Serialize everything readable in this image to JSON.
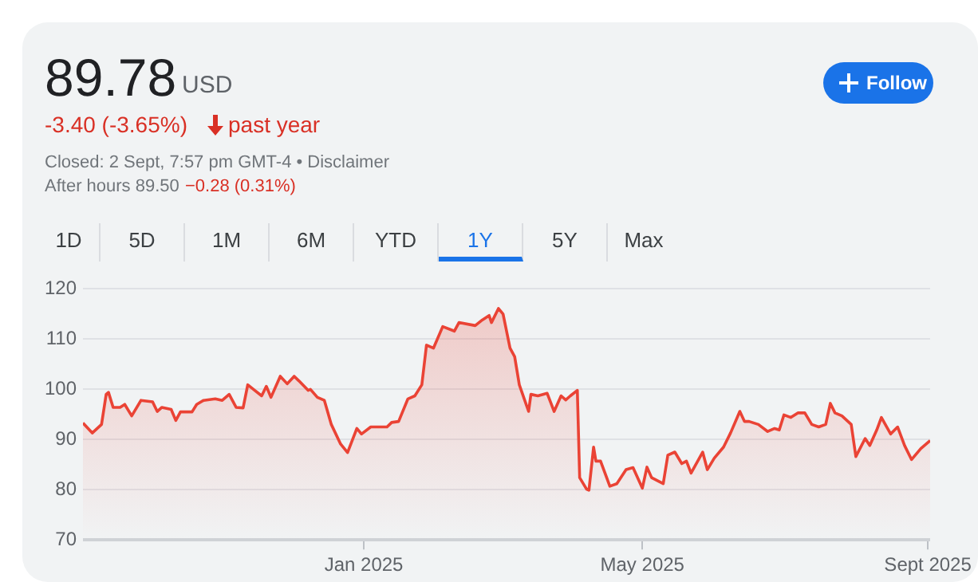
{
  "chart_data": {
    "type": "area",
    "title": "89.78",
    "subtitle": "USD",
    "annotations": [
      "-3.40 (-3.65%)",
      "past year",
      "Closed: 2 Sept, 7:57 pm GMT-4 • Disclaimer",
      "After hours 89.50",
      "−0.28 (0.31%)",
      "1D",
      "5D",
      "1M",
      "6M",
      "YTD",
      "1Y",
      "5Y",
      "Max",
      "Follow"
    ],
    "x": [
      "2024-09-02",
      "2024-09-06",
      "2024-09-10",
      "2024-09-12",
      "2024-09-13",
      "2024-09-15",
      "2024-09-18",
      "2024-09-20",
      "2024-09-23",
      "2024-09-27",
      "2024-10-02",
      "2024-10-04",
      "2024-10-06",
      "2024-10-10",
      "2024-10-12",
      "2024-10-14",
      "2024-10-19",
      "2024-10-21",
      "2024-10-24",
      "2024-10-29",
      "2024-11-01",
      "2024-11-04",
      "2024-11-07",
      "2024-11-10",
      "2024-11-12",
      "2024-11-15",
      "2024-11-18",
      "2024-11-20",
      "2024-11-22",
      "2024-11-26",
      "2024-11-29",
      "2024-12-02",
      "2024-12-04",
      "2024-12-08",
      "2024-12-09",
      "2024-12-12",
      "2024-12-15",
      "2024-12-18",
      "2024-12-22",
      "2024-12-25",
      "2024-12-29",
      "2024-12-31",
      "2025-01-04",
      "2025-01-11",
      "2025-01-13",
      "2025-01-16",
      "2025-01-20",
      "2025-01-23",
      "2025-01-26",
      "2025-01-28",
      "2025-01-31",
      "2025-02-04",
      "2025-02-09",
      "2025-02-11",
      "2025-02-18",
      "2025-02-21",
      "2025-02-24",
      "2025-02-25",
      "2025-02-28",
      "2025-03-02",
      "2025-03-05",
      "2025-03-07",
      "2025-03-09",
      "2025-03-13",
      "2025-03-14",
      "2025-03-17",
      "2025-03-21",
      "2025-03-24",
      "2025-03-27",
      "2025-03-29",
      "2025-03-31",
      "2025-04-03",
      "2025-04-04",
      "2025-04-07",
      "2025-04-08",
      "2025-04-10",
      "2025-04-11",
      "2025-04-13",
      "2025-04-17",
      "2025-04-20",
      "2025-04-24",
      "2025-04-27",
      "2025-05-01",
      "2025-05-03",
      "2025-05-05",
      "2025-05-10",
      "2025-05-12",
      "2025-05-15",
      "2025-05-18",
      "2025-05-20",
      "2025-05-22",
      "2025-05-27",
      "2025-05-29",
      "2025-06-01",
      "2025-06-05",
      "2025-06-08",
      "2025-06-12",
      "2025-06-14",
      "2025-06-16",
      "2025-06-20",
      "2025-06-24",
      "2025-06-27",
      "2025-06-29",
      "2025-07-01",
      "2025-07-04",
      "2025-07-07",
      "2025-07-10",
      "2025-07-13",
      "2025-07-16",
      "2025-07-19",
      "2025-07-21",
      "2025-07-23",
      "2025-07-26",
      "2025-07-30",
      "2025-08-01",
      "2025-08-05",
      "2025-08-07",
      "2025-08-10",
      "2025-08-12",
      "2025-08-16",
      "2025-08-19",
      "2025-08-22",
      "2025-08-25",
      "2025-08-29",
      "2025-09-02"
    ],
    "values": [
      93.3,
      91.3,
      93,
      99,
      99.4,
      96.4,
      96.4,
      97,
      94.7,
      97.8,
      97.5,
      95.6,
      96.4,
      96,
      93.8,
      95.5,
      95.5,
      97,
      97.8,
      98.1,
      97.8,
      99,
      96.4,
      96.3,
      100.9,
      99.8,
      98.7,
      100.6,
      98.4,
      102.6,
      101.1,
      102.6,
      101.7,
      99.8,
      100,
      98.4,
      97.8,
      93,
      89.1,
      87.4,
      92.2,
      91.1,
      92.5,
      92.5,
      93.4,
      93.6,
      98.1,
      98.7,
      100.9,
      108.8,
      108.2,
      112.5,
      111.6,
      113.3,
      112.7,
      113.8,
      114.7,
      113.3,
      116.1,
      115,
      108.2,
      106.5,
      100.9,
      95.6,
      99,
      98.7,
      99.2,
      95.6,
      98.7,
      97.9,
      98.7,
      99.8,
      82.4,
      80.1,
      79.9,
      88.5,
      85.7,
      85.7,
      80.7,
      81.2,
      84,
      84.4,
      80.3,
      84.5,
      82.4,
      81.2,
      86.9,
      87.5,
      85.2,
      85.7,
      83.3,
      87.5,
      84,
      86.3,
      88.5,
      91.3,
      95.6,
      93.6,
      93.6,
      93,
      91.6,
      92.2,
      91.9,
      94.9,
      94.4,
      95.3,
      95.3,
      93,
      92.5,
      93,
      97.2,
      95.3,
      94.7,
      93,
      86.6,
      90.2,
      88.8,
      91.9,
      94.4,
      91.1,
      92.5,
      88.8,
      86,
      88.2,
      89.8
    ],
    "color": "#ea4335",
    "xlim": [
      "2024-09-02",
      "2025-09-02"
    ],
    "xticks": [
      {
        "value": "2025-01-01",
        "label": "Jan 2025"
      },
      {
        "value": "2025-05-01",
        "label": "May 2025"
      },
      {
        "value": "2025-09-01",
        "label": "Sept 2025"
      }
    ],
    "ylim": [
      70,
      120
    ],
    "yticks": [
      70,
      80,
      90,
      100,
      110,
      120
    ],
    "grid": "y",
    "marker": "none",
    "line_style": "solid",
    "legend": false
  }
}
